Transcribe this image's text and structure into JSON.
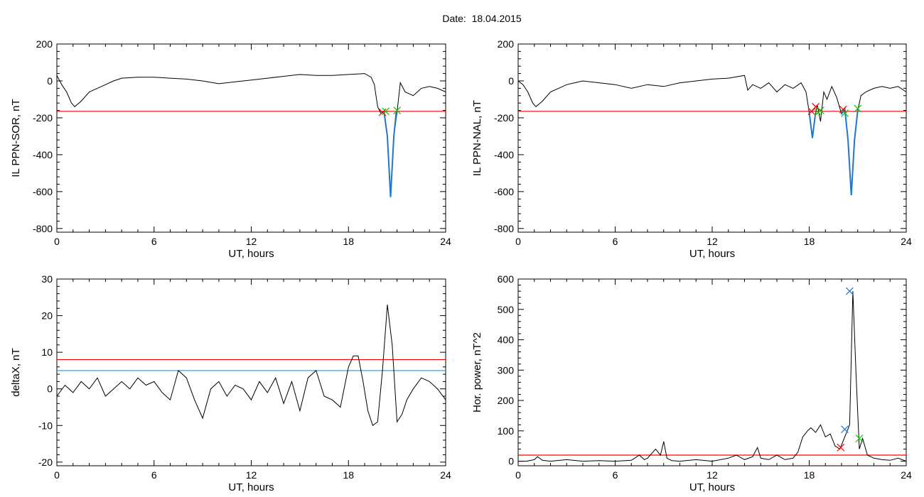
{
  "page": {
    "title": "Date:  18.04.2015"
  },
  "chart_data": [
    {
      "type": "line",
      "panel": "top-left",
      "xlabel": "UT, hours",
      "ylabel": "IL PPN-SOR, nT",
      "xlim": [
        0,
        24
      ],
      "ylim": [
        -820,
        200
      ],
      "xticks": [
        0,
        6,
        12,
        18,
        24
      ],
      "yticks": [
        200,
        0,
        -200,
        -400,
        -600,
        -800
      ],
      "series": [
        {
          "color": "#000000",
          "x": [
            0,
            0.3,
            0.6,
            0.9,
            1.1,
            1.5,
            2,
            2.5,
            3,
            3.5,
            4,
            5,
            6,
            7,
            8,
            9,
            10,
            11,
            12,
            13,
            14,
            15,
            16,
            17,
            18,
            19,
            19.4,
            19.6,
            19.8,
            20,
            20.2,
            20.4,
            20.6,
            20.8,
            21,
            21.2,
            21.5,
            22,
            22.5,
            23,
            23.5,
            24
          ],
          "y": [
            30,
            -20,
            -60,
            -120,
            -140,
            -110,
            -60,
            -40,
            -20,
            0,
            15,
            20,
            20,
            15,
            10,
            0,
            -15,
            -5,
            5,
            15,
            25,
            35,
            30,
            30,
            35,
            40,
            20,
            -20,
            -140,
            -175,
            -170,
            -300,
            -630,
            -300,
            -170,
            -10,
            -60,
            -80,
            -40,
            -30,
            -40,
            -60
          ]
        },
        {
          "color": "#1f77d0",
          "x": [
            20.0,
            20.2,
            20.4,
            20.6,
            20.8,
            20.95
          ],
          "y": [
            -175,
            -170,
            -300,
            -630,
            -300,
            -170
          ]
        }
      ],
      "thresholds": [
        {
          "y": -165,
          "color": "#ff0000"
        }
      ],
      "markers": [
        {
          "x": 20.1,
          "y": -170,
          "color": "#ff0000"
        },
        {
          "x": 20.3,
          "y": -165,
          "color": "#00cc00"
        },
        {
          "x": 21.0,
          "y": -160,
          "color": "#00cc00"
        }
      ]
    },
    {
      "type": "line",
      "panel": "top-right",
      "xlabel": "UT, hours",
      "ylabel": "IL PPN-NAL, nT",
      "xlim": [
        0,
        24
      ],
      "ylim": [
        -820,
        200
      ],
      "xticks": [
        0,
        6,
        12,
        18,
        24
      ],
      "yticks": [
        200,
        0,
        -200,
        -400,
        -600,
        -800
      ],
      "series": [
        {
          "color": "#000000",
          "x": [
            0,
            0.3,
            0.6,
            0.9,
            1.1,
            1.5,
            2,
            2.5,
            3,
            3.5,
            4,
            5,
            6,
            7,
            8,
            9,
            10,
            11,
            12,
            13,
            14,
            14.2,
            14.5,
            15,
            15.5,
            16,
            16.5,
            17,
            17.5,
            17.8,
            18.0,
            18.2,
            18.35,
            18.5,
            18.7,
            18.9,
            19.1,
            19.4,
            19.7,
            20.0,
            20.2,
            20.4,
            20.6,
            20.8,
            21.0,
            21.2,
            21.5,
            22,
            22.5,
            23,
            23.5,
            24
          ],
          "y": [
            0,
            -20,
            -60,
            -120,
            -140,
            -110,
            -60,
            -40,
            -20,
            -10,
            0,
            -10,
            -20,
            -40,
            -20,
            -30,
            -10,
            0,
            10,
            15,
            30,
            -50,
            -20,
            -40,
            -10,
            -60,
            -20,
            -40,
            -10,
            -60,
            -170,
            -310,
            -200,
            -130,
            -220,
            -60,
            -100,
            -30,
            -90,
            -180,
            -150,
            -320,
            -620,
            -320,
            -160,
            -80,
            -60,
            -40,
            -30,
            -40,
            -30,
            -60
          ]
        },
        {
          "color": "#1f77d0",
          "x": [
            18.0,
            18.2,
            18.35
          ],
          "y": [
            -170,
            -310,
            -200
          ]
        },
        {
          "color": "#1f77d0",
          "x": [
            20.0,
            20.2,
            20.4,
            20.6,
            20.8,
            21.0
          ],
          "y": [
            -180,
            -150,
            -320,
            -620,
            -320,
            -160
          ]
        }
      ],
      "thresholds": [
        {
          "y": -165,
          "color": "#ff0000"
        }
      ],
      "markers": [
        {
          "x": 18.15,
          "y": -165,
          "color": "#ff0000"
        },
        {
          "x": 18.4,
          "y": -140,
          "color": "#ff0000"
        },
        {
          "x": 18.55,
          "y": -170,
          "color": "#00cc00"
        },
        {
          "x": 18.7,
          "y": -160,
          "color": "#00cc00"
        },
        {
          "x": 20.1,
          "y": -155,
          "color": "#ff0000"
        },
        {
          "x": 20.2,
          "y": -175,
          "color": "#00cc00"
        },
        {
          "x": 21.0,
          "y": -150,
          "color": "#00cc00"
        }
      ]
    },
    {
      "type": "line",
      "panel": "bottom-left",
      "xlabel": "UT, hours",
      "ylabel": "deltaX, nT",
      "xlim": [
        0,
        24
      ],
      "ylim": [
        -21,
        30
      ],
      "xticks": [
        0,
        6,
        12,
        18,
        24
      ],
      "yticks": [
        30,
        20,
        10,
        0,
        -10,
        -20
      ],
      "series": [
        {
          "color": "#000000",
          "x": [
            0,
            0.5,
            1,
            1.5,
            2,
            2.5,
            3,
            3.5,
            4,
            4.5,
            5,
            5.5,
            6,
            6.5,
            7,
            7.5,
            8,
            8.5,
            9,
            9.5,
            10,
            10.5,
            11,
            11.5,
            12,
            12.5,
            13,
            13.5,
            14,
            14.5,
            15,
            15.5,
            16,
            16.5,
            17,
            17.5,
            18,
            18.3,
            18.6,
            18.9,
            19.2,
            19.5,
            19.8,
            20.1,
            20.4,
            20.7,
            21.0,
            21.3,
            21.6,
            22,
            22.5,
            23,
            23.5,
            24
          ],
          "y": [
            -2,
            1,
            -1,
            2,
            0,
            3,
            -2,
            0,
            2,
            0,
            3,
            1,
            2,
            -1,
            -3,
            5,
            3,
            -3,
            -8,
            0,
            2,
            -2,
            1,
            0,
            -3,
            2,
            -1,
            3,
            -4,
            2,
            -6,
            3,
            5,
            -2,
            -3,
            -5,
            6,
            9,
            9,
            2,
            -6,
            -10,
            -9,
            5,
            23,
            12,
            -9,
            -7,
            -3,
            0,
            3,
            2,
            0,
            -3
          ]
        }
      ],
      "thresholds": [
        {
          "y": 8,
          "color": "#ff0000"
        },
        {
          "y": 5,
          "color": "#1f9ad0"
        }
      ],
      "markers": []
    },
    {
      "type": "line",
      "panel": "bottom-right",
      "xlabel": "UT, hours",
      "ylabel": "Hor. power, nT^2",
      "xlim": [
        0,
        24
      ],
      "ylim": [
        -15,
        600
      ],
      "xticks": [
        0,
        6,
        12,
        18,
        24
      ],
      "yticks": [
        600,
        500,
        400,
        300,
        200,
        100,
        0
      ],
      "series": [
        {
          "color": "#000000",
          "x": [
            0,
            0.5,
            1,
            1.2,
            1.5,
            2,
            3,
            4,
            5,
            6,
            7,
            7.5,
            7.8,
            8,
            8.5,
            8.8,
            9.0,
            9.2,
            9.5,
            10,
            11,
            12,
            13,
            13.5,
            14,
            14.5,
            14.8,
            15,
            15.5,
            16,
            16.5,
            17,
            17.3,
            17.6,
            17.9,
            18.1,
            18.4,
            18.7,
            19.0,
            19.3,
            19.6,
            19.9,
            20.2,
            20.5,
            20.7,
            20.9,
            21.1,
            21.3,
            21.6,
            22,
            22.5,
            23,
            23.5,
            24
          ],
          "y": [
            0,
            0,
            5,
            15,
            3,
            0,
            5,
            0,
            2,
            0,
            3,
            20,
            5,
            10,
            40,
            20,
            65,
            10,
            2,
            0,
            5,
            0,
            10,
            20,
            5,
            15,
            45,
            10,
            5,
            20,
            5,
            10,
            30,
            80,
            100,
            110,
            95,
            120,
            80,
            90,
            50,
            40,
            80,
            120,
            560,
            280,
            40,
            75,
            20,
            10,
            5,
            3,
            10,
            0
          ]
        }
      ],
      "thresholds": [
        {
          "y": 20,
          "color": "#ff0000"
        }
      ],
      "markers": [
        {
          "x": 20.5,
          "y": 560,
          "color": "#1f77d0"
        },
        {
          "x": 20.2,
          "y": 105,
          "color": "#1f77d0"
        },
        {
          "x": 19.95,
          "y": 45,
          "color": "#ff0000"
        },
        {
          "x": 21.1,
          "y": 75,
          "color": "#00cc00"
        }
      ]
    }
  ]
}
